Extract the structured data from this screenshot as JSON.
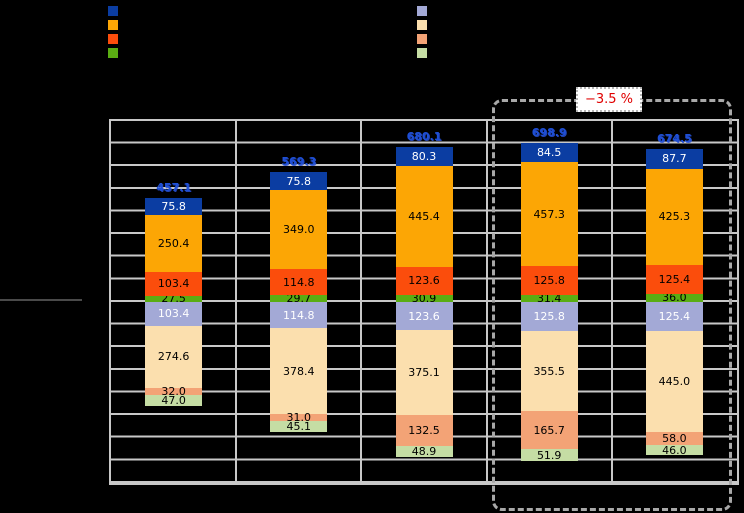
{
  "chart_data": {
    "type": "bar",
    "variant": "diverging-stacked",
    "title": "",
    "xlabel": "",
    "ylabel": "",
    "grid": "on",
    "y_gridline_interval": 100,
    "ylim": [
      -800,
      800
    ],
    "baseline_value": 0,
    "series_upper": [
      {
        "name": "dark-blue",
        "color": "#0b3da2",
        "text_color": "#ffffff"
      },
      {
        "name": "orange",
        "color": "#fca605",
        "text_color": "#000000"
      },
      {
        "name": "orange-red",
        "color": "#fb4d0c",
        "text_color": "#000000"
      },
      {
        "name": "green",
        "color": "#5aad13",
        "text_color": "#000000"
      }
    ],
    "series_lower": [
      {
        "name": "periwinkle",
        "color": "#a3a9d6",
        "text_color": "#ffffff"
      },
      {
        "name": "cream",
        "color": "#fbdfae",
        "text_color": "#000000"
      },
      {
        "name": "peach",
        "color": "#f3a376",
        "text_color": "#000000"
      },
      {
        "name": "light-green",
        "color": "#c5dda4",
        "text_color": "#000000"
      }
    ],
    "bars": [
      {
        "total_label": "457.1",
        "upper": [
          "75.8",
          "250.4",
          "103.4",
          "27.5"
        ],
        "lower": [
          "103.4",
          "274.6",
          "32.0",
          "47.0"
        ]
      },
      {
        "total_label": "569.3",
        "upper": [
          "75.8",
          "349.0",
          "114.8",
          "29.7"
        ],
        "lower": [
          "114.8",
          "378.4",
          "31.0",
          "45.1"
        ]
      },
      {
        "total_label": "680.1",
        "upper": [
          "80.3",
          "445.4",
          "123.6",
          "30.9"
        ],
        "lower": [
          "123.6",
          "375.1",
          "132.5",
          "48.9"
        ]
      },
      {
        "total_label": "698.9",
        "upper": [
          "84.5",
          "457.3",
          "125.8",
          "31.4"
        ],
        "lower": [
          "125.8",
          "355.5",
          "165.7",
          "51.9"
        ]
      },
      {
        "total_label": "674.5",
        "upper": [
          "87.7",
          "425.3",
          "125.4",
          "36.0"
        ],
        "lower": [
          "125.4",
          "445.0",
          "58.0",
          "46.0"
        ]
      }
    ],
    "total_label_color": "#1e4fd6",
    "annotation": {
      "text": "−3.5 %",
      "color": "#e00000",
      "applies_to_bars": [
        3,
        4
      ]
    }
  }
}
